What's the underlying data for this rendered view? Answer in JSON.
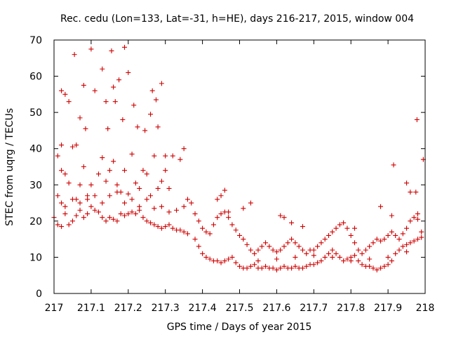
{
  "chart_data": {
    "type": "scatter",
    "title": "Rec. cedu (Lon=133, Lat=-31, h=HE), days 216-217, 2015, window 004",
    "xlabel": "GPS time / Days of year 2015",
    "ylabel": "STEC from uqrg / TECUs",
    "xlim": [
      217,
      218
    ],
    "ylim": [
      0,
      70
    ],
    "xticks": [
      217,
      217.1,
      217.2,
      217.3,
      217.4,
      217.5,
      217.6,
      217.7,
      217.8,
      217.9,
      218
    ],
    "xtick_labels": [
      "217",
      "217.1",
      "217.2",
      "217.3",
      "217.4",
      "217.5",
      "217.6",
      "217.7",
      "217.8",
      "217.9",
      "218"
    ],
    "yticks": [
      0,
      10,
      20,
      30,
      40,
      50,
      60,
      70
    ],
    "ytick_labels": [
      "0",
      "10",
      "20",
      "30",
      "40",
      "50",
      "60",
      "70"
    ],
    "grid": false,
    "marker": "+",
    "color": "#d00000",
    "series": [
      {
        "points": [
          [
            217.01,
            38
          ],
          [
            217.02,
            41
          ],
          [
            217.02,
            56
          ],
          [
            217.03,
            55
          ],
          [
            217.04,
            53
          ],
          [
            217.05,
            40.5
          ],
          [
            217.055,
            66
          ],
          [
            217.06,
            41
          ],
          [
            217.07,
            48.5
          ],
          [
            217.08,
            57.5
          ],
          [
            217.085,
            45.5
          ],
          [
            217.1,
            67.5
          ],
          [
            217.11,
            56
          ],
          [
            217.13,
            62
          ],
          [
            217.14,
            53
          ],
          [
            217.145,
            45.5
          ],
          [
            217.155,
            67
          ],
          [
            217.16,
            57
          ],
          [
            217.165,
            53
          ],
          [
            217.175,
            59
          ],
          [
            217.185,
            48
          ],
          [
            217.19,
            68
          ],
          [
            217.2,
            61
          ],
          [
            217.215,
            52
          ],
          [
            217.225,
            46
          ],
          [
            217.245,
            45
          ],
          [
            217.26,
            49.5
          ],
          [
            217.265,
            56
          ],
          [
            217.275,
            53.5
          ],
          [
            217.28,
            46
          ],
          [
            217.29,
            58
          ],
          [
            217.3,
            38
          ],
          [
            217.32,
            38
          ],
          [
            217.34,
            37
          ],
          [
            217.35,
            40
          ],
          [
            217.01,
            27
          ],
          [
            217.02,
            34
          ],
          [
            217.03,
            33
          ],
          [
            217.04,
            30.5
          ],
          [
            217.06,
            26
          ],
          [
            217.07,
            30
          ],
          [
            217.08,
            35
          ],
          [
            217.09,
            27
          ],
          [
            217.1,
            30
          ],
          [
            217.12,
            33
          ],
          [
            217.13,
            37.5
          ],
          [
            217.14,
            31
          ],
          [
            217.15,
            34
          ],
          [
            217.16,
            36.5
          ],
          [
            217.17,
            30
          ],
          [
            217.18,
            28
          ],
          [
            217.19,
            34
          ],
          [
            217.2,
            27.5
          ],
          [
            217.21,
            38.5
          ],
          [
            217.22,
            30.5
          ],
          [
            217.23,
            29
          ],
          [
            217.24,
            34
          ],
          [
            217.25,
            33
          ],
          [
            217.26,
            27
          ],
          [
            217.27,
            38
          ],
          [
            217.28,
            29
          ],
          [
            217.29,
            31
          ],
          [
            217.3,
            34
          ],
          [
            217.31,
            29
          ],
          [
            217.0,
            21
          ],
          [
            217.01,
            19
          ],
          [
            217.02,
            18.5
          ],
          [
            217.03,
            22
          ],
          [
            217.04,
            19
          ],
          [
            217.05,
            20
          ],
          [
            217.06,
            21.5
          ],
          [
            217.07,
            23
          ],
          [
            217.08,
            21
          ],
          [
            217.09,
            22
          ],
          [
            217.1,
            24
          ],
          [
            217.11,
            23
          ],
          [
            217.12,
            22.5
          ],
          [
            217.13,
            21
          ],
          [
            217.14,
            20
          ],
          [
            217.15,
            21
          ],
          [
            217.16,
            20.5
          ],
          [
            217.17,
            20
          ],
          [
            217.18,
            22
          ],
          [
            217.19,
            21.5
          ],
          [
            217.2,
            22
          ],
          [
            217.21,
            22.5
          ],
          [
            217.22,
            22
          ],
          [
            217.23,
            23
          ],
          [
            217.24,
            21
          ],
          [
            217.25,
            20
          ],
          [
            217.26,
            19.5
          ],
          [
            217.27,
            19
          ],
          [
            217.28,
            18.5
          ],
          [
            217.29,
            18
          ],
          [
            217.3,
            18.5
          ],
          [
            217.31,
            19
          ],
          [
            217.32,
            18
          ],
          [
            217.33,
            17.5
          ],
          [
            217.34,
            17.5
          ],
          [
            217.35,
            17
          ],
          [
            217.36,
            16.5
          ],
          [
            217.02,
            25
          ],
          [
            217.03,
            24
          ],
          [
            217.05,
            26
          ],
          [
            217.07,
            25
          ],
          [
            217.09,
            26
          ],
          [
            217.11,
            27
          ],
          [
            217.13,
            25
          ],
          [
            217.15,
            27
          ],
          [
            217.17,
            28
          ],
          [
            217.19,
            25
          ],
          [
            217.21,
            26
          ],
          [
            217.23,
            24
          ],
          [
            217.25,
            26
          ],
          [
            217.27,
            23.5
          ],
          [
            217.29,
            24
          ],
          [
            217.31,
            22.5
          ],
          [
            217.33,
            23
          ],
          [
            217.35,
            24
          ],
          [
            217.36,
            26
          ],
          [
            217.37,
            25
          ],
          [
            217.38,
            22
          ],
          [
            217.39,
            20
          ],
          [
            217.4,
            18
          ],
          [
            217.41,
            17
          ],
          [
            217.42,
            16.5
          ],
          [
            217.43,
            19
          ],
          [
            217.44,
            21
          ],
          [
            217.45,
            22
          ],
          [
            217.46,
            22.5
          ],
          [
            217.47,
            21
          ],
          [
            217.48,
            19
          ],
          [
            217.49,
            17.5
          ],
          [
            217.5,
            16
          ],
          [
            217.51,
            15
          ],
          [
            217.52,
            13.5
          ],
          [
            217.53,
            12
          ],
          [
            217.54,
            11
          ],
          [
            217.55,
            12
          ],
          [
            217.56,
            13
          ],
          [
            217.57,
            14
          ],
          [
            217.58,
            13
          ],
          [
            217.59,
            12
          ],
          [
            217.6,
            11.5
          ],
          [
            217.61,
            12
          ],
          [
            217.62,
            13
          ],
          [
            217.63,
            14
          ],
          [
            217.64,
            15
          ],
          [
            217.65,
            14
          ],
          [
            217.66,
            13
          ],
          [
            217.67,
            12
          ],
          [
            217.68,
            11
          ],
          [
            217.69,
            12
          ],
          [
            217.38,
            15
          ],
          [
            217.39,
            13
          ],
          [
            217.4,
            11
          ],
          [
            217.41,
            10
          ],
          [
            217.42,
            9.5
          ],
          [
            217.43,
            9
          ],
          [
            217.44,
            9
          ],
          [
            217.45,
            8.5
          ],
          [
            217.46,
            9
          ],
          [
            217.47,
            9.5
          ],
          [
            217.48,
            10
          ],
          [
            217.49,
            8.5
          ],
          [
            217.5,
            7.5
          ],
          [
            217.51,
            7
          ],
          [
            217.52,
            7
          ],
          [
            217.53,
            7.5
          ],
          [
            217.54,
            8
          ],
          [
            217.55,
            7
          ],
          [
            217.56,
            7
          ],
          [
            217.57,
            7.5
          ],
          [
            217.58,
            7
          ],
          [
            217.59,
            7
          ],
          [
            217.6,
            6.5
          ],
          [
            217.61,
            7
          ],
          [
            217.62,
            7.5
          ],
          [
            217.63,
            7
          ],
          [
            217.64,
            7
          ],
          [
            217.65,
            7.5
          ],
          [
            217.66,
            7
          ],
          [
            217.67,
            7
          ],
          [
            217.68,
            7.5
          ],
          [
            217.69,
            8
          ],
          [
            217.7,
            8
          ],
          [
            217.71,
            8.5
          ],
          [
            217.72,
            9
          ],
          [
            217.73,
            10
          ],
          [
            217.74,
            11
          ],
          [
            217.75,
            12
          ],
          [
            217.76,
            11
          ],
          [
            217.77,
            10
          ],
          [
            217.78,
            9
          ],
          [
            217.79,
            9.5
          ],
          [
            217.8,
            10
          ],
          [
            217.81,
            10.5
          ],
          [
            217.82,
            9
          ],
          [
            217.83,
            8
          ],
          [
            217.84,
            7.5
          ],
          [
            217.85,
            7.5
          ],
          [
            217.86,
            7
          ],
          [
            217.87,
            6.5
          ],
          [
            217.88,
            7
          ],
          [
            217.89,
            7.5
          ],
          [
            217.9,
            8
          ],
          [
            217.91,
            9
          ],
          [
            217.92,
            11
          ],
          [
            217.93,
            12
          ],
          [
            217.94,
            13
          ],
          [
            217.95,
            13.5
          ],
          [
            217.96,
            14
          ],
          [
            217.97,
            14.5
          ],
          [
            217.98,
            15
          ],
          [
            217.99,
            15.5
          ],
          [
            217.7,
            12
          ],
          [
            217.71,
            13
          ],
          [
            217.72,
            14
          ],
          [
            217.73,
            15
          ],
          [
            217.74,
            16
          ],
          [
            217.75,
            17
          ],
          [
            217.76,
            18
          ],
          [
            217.77,
            19
          ],
          [
            217.78,
            19.5
          ],
          [
            217.79,
            18
          ],
          [
            217.8,
            16
          ],
          [
            217.81,
            14
          ],
          [
            217.82,
            12
          ],
          [
            217.83,
            11
          ],
          [
            217.84,
            12
          ],
          [
            217.85,
            13
          ],
          [
            217.86,
            14
          ],
          [
            217.87,
            15
          ],
          [
            217.88,
            14.5
          ],
          [
            217.89,
            15
          ],
          [
            217.9,
            16
          ],
          [
            217.91,
            17
          ],
          [
            217.92,
            16
          ],
          [
            217.93,
            15
          ],
          [
            217.94,
            16.5
          ],
          [
            217.95,
            18
          ],
          [
            217.96,
            20
          ],
          [
            217.97,
            21
          ],
          [
            217.98,
            22
          ],
          [
            217.99,
            17
          ],
          [
            217.55,
            9
          ],
          [
            217.6,
            9.5
          ],
          [
            217.65,
            10
          ],
          [
            217.7,
            10.5
          ],
          [
            217.75,
            10
          ],
          [
            217.8,
            9
          ],
          [
            217.85,
            9.5
          ],
          [
            217.9,
            10
          ],
          [
            217.95,
            11.5
          ],
          [
            217.44,
            26
          ],
          [
            217.45,
            27
          ],
          [
            217.46,
            28.5
          ],
          [
            217.47,
            22.5
          ],
          [
            217.51,
            23.5
          ],
          [
            217.53,
            25
          ],
          [
            217.61,
            21.5
          ],
          [
            217.62,
            21
          ],
          [
            217.64,
            19.5
          ],
          [
            217.67,
            18.5
          ],
          [
            217.81,
            18
          ],
          [
            217.88,
            24
          ],
          [
            217.91,
            21.5
          ],
          [
            217.915,
            35.5
          ],
          [
            217.95,
            30.5
          ],
          [
            217.96,
            28
          ],
          [
            217.975,
            28
          ],
          [
            217.978,
            48
          ],
          [
            217.98,
            20.5
          ],
          [
            217.995,
            37
          ]
        ]
      }
    ]
  }
}
